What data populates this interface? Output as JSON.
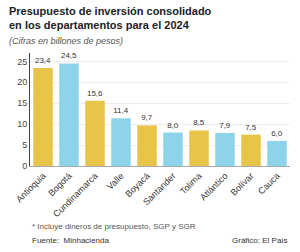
{
  "chart_data": {
    "type": "bar",
    "title": "Presupuesto de inversión consolidado en los departamentos para el 2024",
    "subtitle": "(Cifras en billones de pesos)",
    "annotations": [
      "* Incluye dineros de presupuesto, SGP y SGR",
      "Fuente:  Minhacienda",
      "Gráfico: El País"
    ],
    "categories": [
      "Antioquia",
      "Bogotá",
      "Cundinamarca",
      "Valle",
      "Boyacá",
      "Santander",
      "Tolima",
      "Atlántico",
      "Bolívar",
      "Cauca"
    ],
    "values": [
      23.4,
      24.5,
      15.6,
      11.4,
      9.7,
      8.0,
      8.5,
      7.9,
      7.5,
      6.0
    ],
    "value_labels": [
      "23,4",
      "24,5",
      "15,6",
      "11,4",
      "9,7",
      "8,0",
      "8,5",
      "7,9",
      "7,5",
      "6,0"
    ],
    "data_labels": true,
    "colors": [
      "#E8C44A",
      "#8DD4EA",
      "#E8C44A",
      "#8DD4EA",
      "#E8C44A",
      "#8DD4EA",
      "#E8C44A",
      "#8DD4EA",
      "#E8C44A",
      "#8DD4EA"
    ],
    "ylim": [
      0,
      27
    ],
    "yticks": [
      0,
      5,
      10,
      15,
      20,
      25
    ],
    "grid": true
  }
}
